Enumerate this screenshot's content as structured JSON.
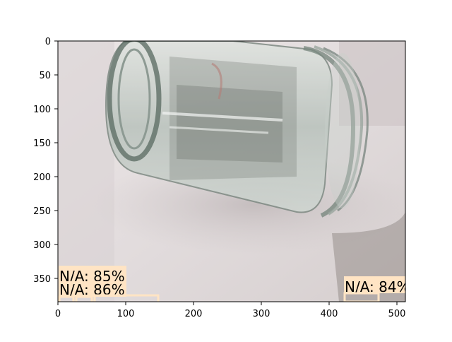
{
  "image": {
    "description_free": true,
    "axes": {
      "x_ticks": [
        "0",
        "100",
        "200",
        "300",
        "400",
        "500"
      ],
      "y_ticks": [
        "0",
        "50",
        "100",
        "150",
        "200",
        "250",
        "300",
        "350"
      ]
    }
  },
  "detections": [
    {
      "label": "N/A: 85%"
    },
    {
      "label": "N/A: 86%"
    },
    {
      "label": "N/A: 84%"
    }
  ]
}
